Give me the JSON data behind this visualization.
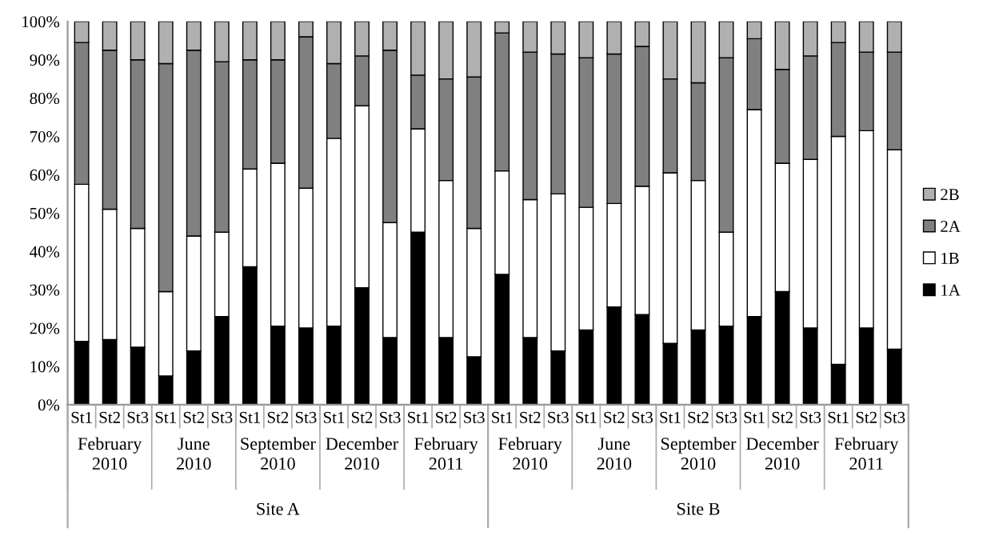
{
  "chart_data": {
    "type": "bar",
    "stacked": true,
    "legend": "right",
    "grid": false,
    "categories": [
      "St1",
      "St2",
      "St3",
      "St1",
      "St2",
      "St3",
      "St1",
      "St2",
      "St3",
      "St1",
      "St2",
      "St3",
      "St1",
      "St2",
      "St3",
      "St1",
      "St2",
      "St3",
      "St1",
      "St2",
      "St3",
      "St1",
      "St2",
      "St3",
      "St1",
      "St2",
      "St3",
      "St1",
      "St2",
      "St3"
    ],
    "series": [
      {
        "name": "1A",
        "color": "#000000",
        "values": [
          16.5,
          17,
          15,
          7.5,
          14,
          23,
          36,
          20.5,
          20,
          20.5,
          30.5,
          17.5,
          45,
          17.5,
          12.5,
          34,
          17.5,
          14,
          19.5,
          25.5,
          23.5,
          16,
          19.5,
          20.5,
          23,
          29.5,
          20,
          10.5,
          20,
          14.5
        ]
      },
      {
        "name": "1B",
        "color": "#ffffff",
        "values": [
          41,
          34,
          31,
          22,
          30,
          22,
          25.5,
          42.5,
          36.5,
          49,
          47.5,
          30,
          27,
          41,
          33.5,
          27,
          36,
          41,
          32,
          27,
          33.5,
          44.5,
          39,
          24.5,
          54,
          33.5,
          44,
          59.5,
          51.5,
          52
        ]
      },
      {
        "name": "2A",
        "color": "#808080",
        "values": [
          37,
          41.5,
          44,
          59.5,
          48.5,
          44.5,
          28.5,
          27,
          39.5,
          19.5,
          13,
          45,
          14,
          26.5,
          39.5,
          36,
          38.5,
          36.5,
          39,
          39,
          36.5,
          24.5,
          25.5,
          45.5,
          18.5,
          24.5,
          27,
          24.5,
          20.5,
          25.5
        ]
      },
      {
        "name": "2B",
        "color": "#b0b0b0",
        "values": [
          5.5,
          7.5,
          10,
          11,
          7.5,
          10.5,
          10,
          10,
          4,
          11,
          9,
          7.5,
          14,
          15,
          14.5,
          3,
          8,
          8.5,
          9.5,
          8.5,
          6.5,
          15,
          16,
          9.5,
          4.5,
          12.5,
          9,
          5.5,
          8,
          8
        ]
      }
    ],
    "ylim": [
      0,
      100
    ],
    "yticks": [
      {
        "value": 0,
        "label": "0%"
      },
      {
        "value": 10,
        "label": "10%"
      },
      {
        "value": 20,
        "label": "20%"
      },
      {
        "value": 30,
        "label": "30%"
      },
      {
        "value": 40,
        "label": "40%"
      },
      {
        "value": 50,
        "label": "50%"
      },
      {
        "value": 60,
        "label": "60%"
      },
      {
        "value": 70,
        "label": "70%"
      },
      {
        "value": 80,
        "label": "80%"
      },
      {
        "value": 90,
        "label": "90%"
      },
      {
        "value": 100,
        "label": "100%"
      }
    ],
    "annotations": [
      "February\n2010",
      "June\n2010",
      "September\n2010",
      "December\n2010",
      "February\n2011",
      "February\n2010",
      "June\n2010",
      "September\n2010",
      "December\n2010",
      "February\n2011",
      "Site A",
      "Site B"
    ]
  }
}
